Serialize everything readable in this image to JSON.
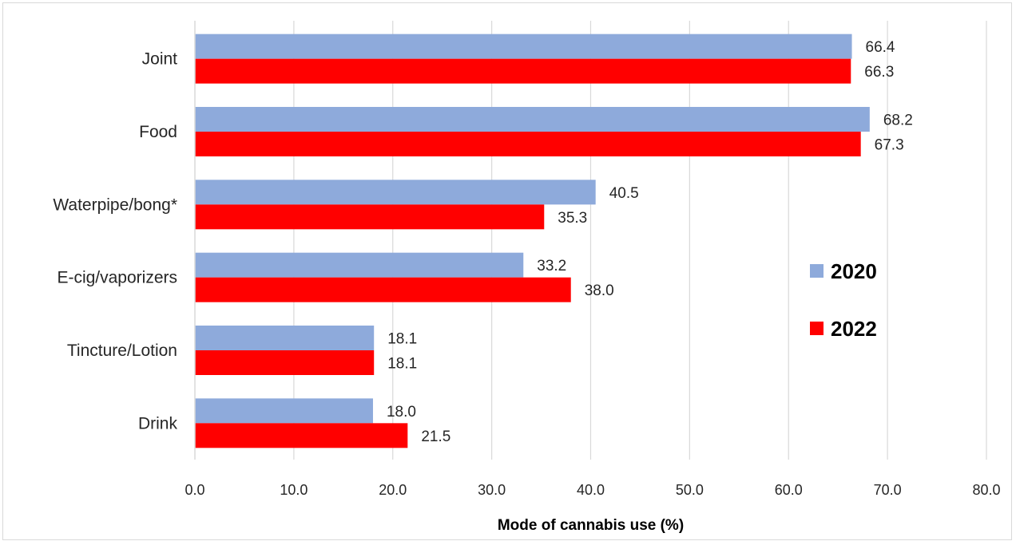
{
  "chart_data": {
    "type": "bar",
    "orientation": "horizontal",
    "categories": [
      "Joint",
      "Food",
      "Waterpipe/bong*",
      "E-cig/vaporizers",
      "Tincture/Lotion",
      "Drink"
    ],
    "series": [
      {
        "name": "2020",
        "color": "#8eaadb",
        "values": [
          66.4,
          68.2,
          40.5,
          33.2,
          18.1,
          18.0
        ],
        "labels": [
          "66.4",
          "68.2",
          "40.5",
          "33.2",
          "18.1",
          "18.0"
        ]
      },
      {
        "name": "2022",
        "color": "#ff0000",
        "values": [
          66.3,
          67.3,
          35.3,
          38.0,
          18.1,
          21.5
        ],
        "labels": [
          "66.3",
          "67.3",
          "35.3",
          "38.0",
          "18.1",
          "21.5"
        ]
      }
    ],
    "xlabel": "Mode of cannabis use (%)",
    "ylabel": "",
    "xlim": [
      0,
      80
    ],
    "xticks": [
      "0.0",
      "10.0",
      "20.0",
      "30.0",
      "40.0",
      "50.0",
      "60.0",
      "70.0",
      "80.0"
    ],
    "grid": true,
    "legend_position": "right"
  }
}
